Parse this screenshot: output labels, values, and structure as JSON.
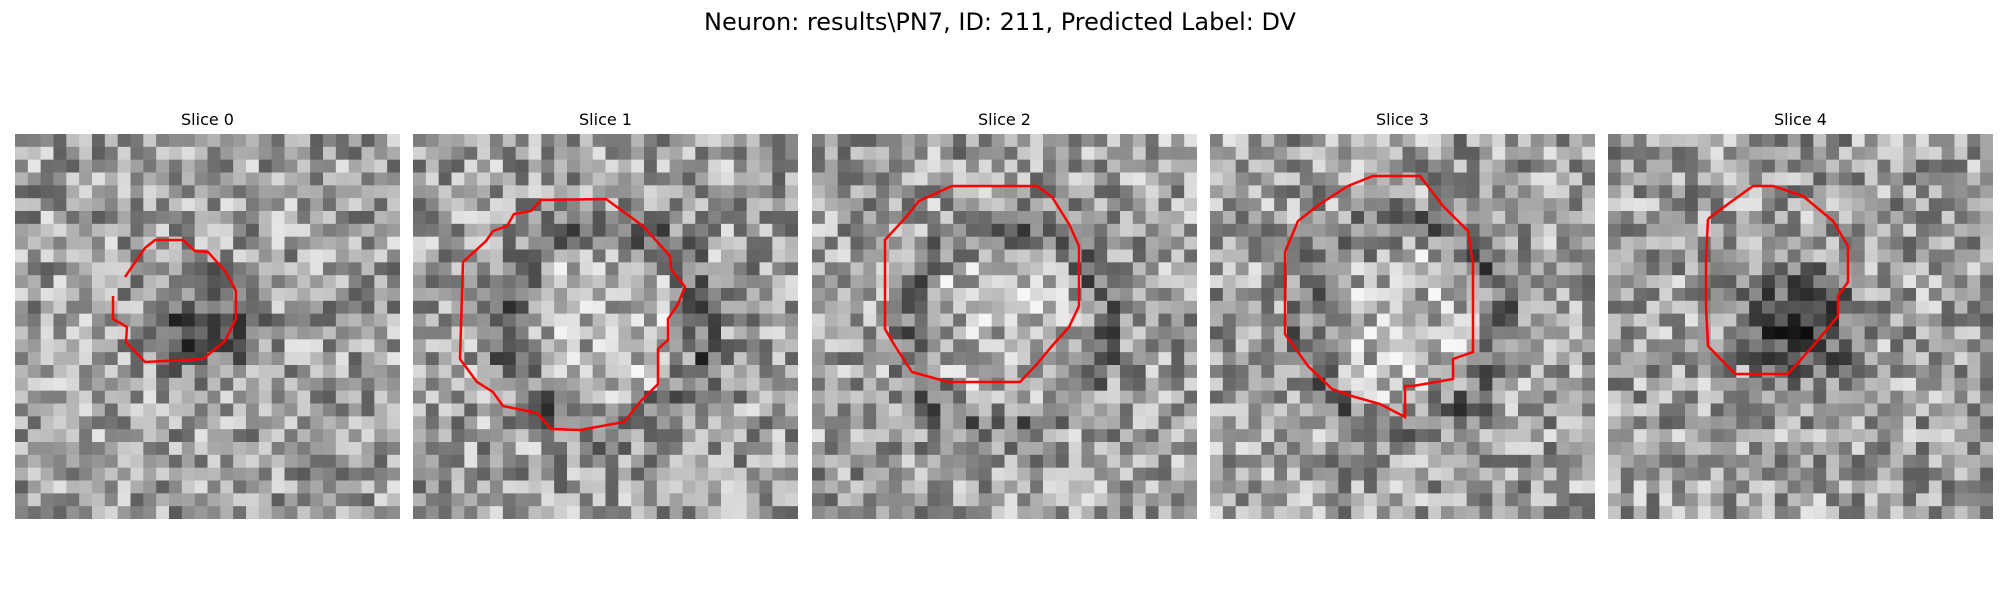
{
  "suptitle": "Neuron: results\\PN7, ID: 211, Predicted Label: DV",
  "contour_color": "#ff0000",
  "panels": [
    {
      "title": "Slice 0",
      "seed": 11,
      "dark_blob": 0.45,
      "ring": 0.0
    },
    {
      "title": "Slice 1",
      "seed": 23,
      "dark_blob": 0.0,
      "ring": 0.55
    },
    {
      "title": "Slice 2",
      "seed": 37,
      "dark_blob": 0.0,
      "ring": 0.5
    },
    {
      "title": "Slice 3",
      "seed": 41,
      "dark_blob": 0.0,
      "ring": 0.5
    },
    {
      "title": "Slice 4",
      "seed": 59,
      "dark_blob": 0.6,
      "ring": 0.0
    }
  ]
}
